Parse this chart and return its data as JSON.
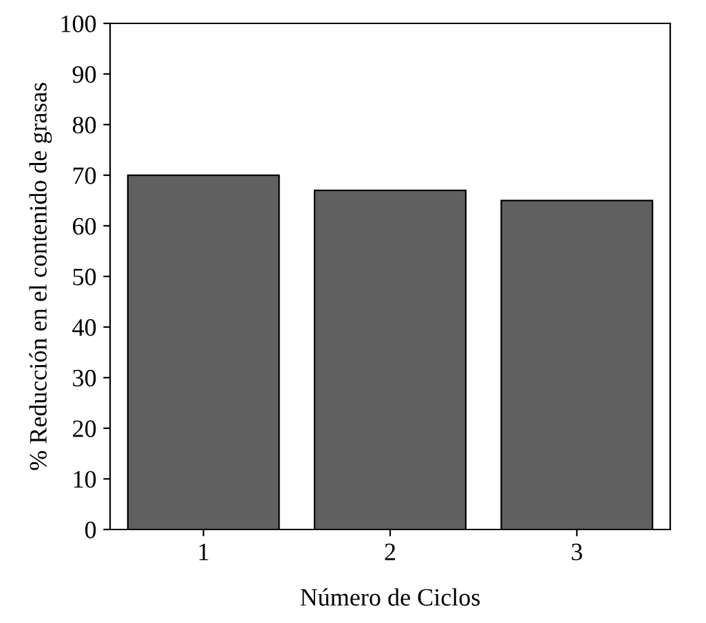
{
  "chart_data": {
    "type": "bar",
    "xlabel": "Número de Ciclos",
    "ylabel": "% Reducción en el contenido de grasas",
    "categories": [
      "1",
      "2",
      "3"
    ],
    "values": [
      70,
      67,
      65
    ],
    "color": "#606060",
    "ylim": [
      0,
      100
    ],
    "yticks": [
      0,
      10,
      20,
      30,
      40,
      50,
      60,
      70,
      80,
      90,
      100
    ],
    "grid": false,
    "legend": false
  }
}
